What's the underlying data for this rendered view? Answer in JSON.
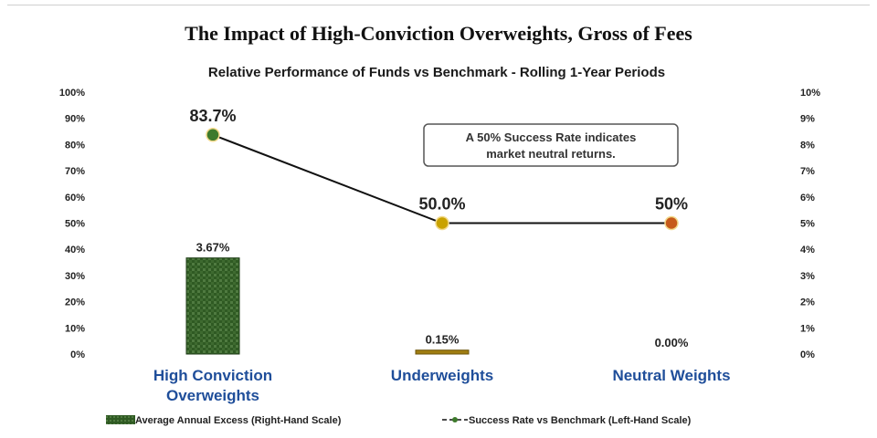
{
  "page": {
    "title": "The Impact of High-Conviction Overweights, Gross of Fees"
  },
  "chart_data": {
    "type": "bar",
    "title": "Relative Performance of Funds vs Benchmark - Rolling 1-Year Periods",
    "categories": [
      "High Conviction Overweights",
      "Underweights",
      "Neutral Weights"
    ],
    "y_left": {
      "ylim": [
        0,
        100
      ],
      "ticks": [
        "0%",
        "10%",
        "20%",
        "30%",
        "40%",
        "50%",
        "60%",
        "70%",
        "80%",
        "90%",
        "100%"
      ]
    },
    "y_right": {
      "ylim": [
        0,
        10
      ],
      "ticks": [
        "0%",
        "1%",
        "2%",
        "3%",
        "4%",
        "5%",
        "6%",
        "7%",
        "8%",
        "9%",
        "10%"
      ]
    },
    "series": [
      {
        "name": "Average Annual Excess (Right-Hand Scale)",
        "type": "bar",
        "axis": "right",
        "values": [
          3.67,
          0.15,
          0.0
        ],
        "labels": [
          "3.67%",
          "0.15%",
          "0.00%"
        ],
        "color": "#2f5a23"
      },
      {
        "name": "Success Rate vs Benchmark (Left-Hand Scale)",
        "type": "line",
        "axis": "left",
        "values": [
          83.7,
          50.0,
          50.0
        ],
        "labels": [
          "83.7%",
          "50.0%",
          "50%"
        ],
        "line_color": "#111111",
        "point_colors": [
          "#3d7a2c",
          "#c9a200",
          "#c65a1a"
        ]
      }
    ],
    "annotation": {
      "lines": [
        "A 50% Success Rate indicates",
        "market neutral returns."
      ]
    },
    "legend": "bottom",
    "grid": false
  }
}
